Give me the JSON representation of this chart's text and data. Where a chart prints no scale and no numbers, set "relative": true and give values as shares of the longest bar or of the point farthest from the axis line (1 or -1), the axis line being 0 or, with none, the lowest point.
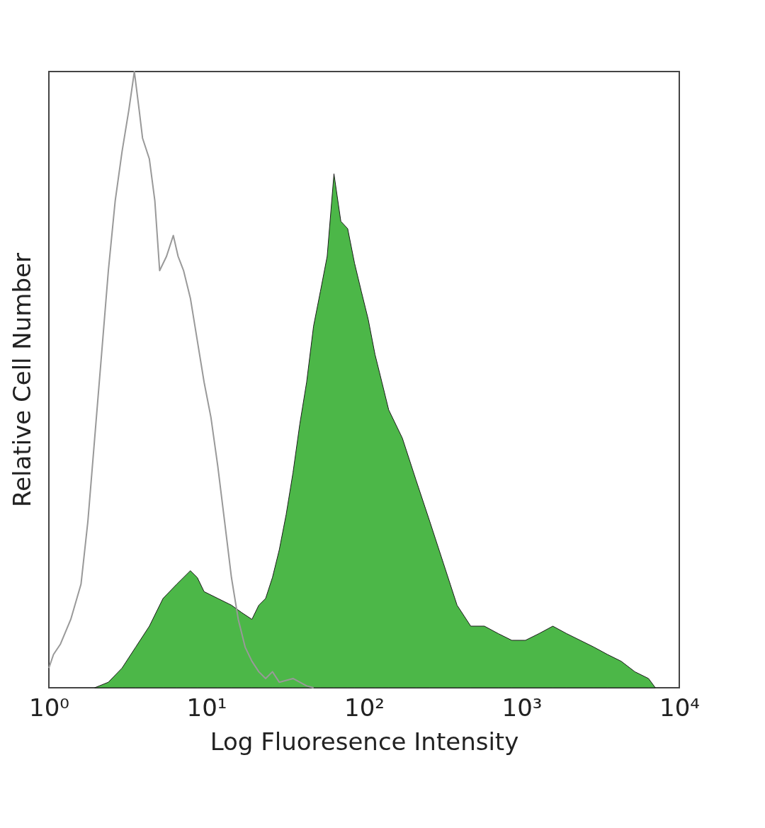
{
  "chart_data": {
    "type": "area",
    "xlabel": "Log Fluoresence Intensity",
    "ylabel": "Relative Cell Number",
    "relative": true,
    "log": "x",
    "tick_labels": "x",
    "xlim": [
      1,
      10000
    ],
    "xticks": [
      {
        "value": 1,
        "label": "10⁰"
      },
      {
        "value": 10,
        "label": "10¹"
      },
      {
        "value": 100,
        "label": "10²"
      },
      {
        "value": 1000,
        "label": "10³"
      },
      {
        "value": 10000,
        "label": "10⁴"
      }
    ],
    "series": [
      {
        "color": "#4cb748",
        "x": [
          1.953,
          2.385,
          2.912,
          3.556,
          4.342,
          5.302,
          6.475,
          7.907,
          8.738,
          9.656,
          11.79,
          14.4,
          16.73,
          19.43,
          21.48,
          23.73,
          26.22,
          28.97,
          32.02,
          35.39,
          39.1,
          43.2,
          47.8,
          52.8,
          58.3,
          64.4,
          71.2,
          78.7,
          87.0,
          96.1,
          106.2,
          117.3,
          129.7,
          143.3,
          175,
          213.6,
          261,
          318.7,
          389,
          475,
          580,
          709,
          865,
          1057,
          1290,
          1576,
          1924,
          2350,
          2870,
          3504,
          4278,
          5224,
          6380,
          7047
        ],
        "values": [
          0,
          0.009,
          0.032,
          0.066,
          0.1,
          0.145,
          0.168,
          0.19,
          0.179,
          0.156,
          0.145,
          0.134,
          0.122,
          0.111,
          0.134,
          0.145,
          0.179,
          0.224,
          0.281,
          0.349,
          0.428,
          0.496,
          0.587,
          0.643,
          0.7,
          0.834,
          0.757,
          0.745,
          0.689,
          0.643,
          0.598,
          0.541,
          0.496,
          0.451,
          0.405,
          0.337,
          0.27,
          0.202,
          0.134,
          0.1,
          0.1,
          0.088,
          0.077,
          0.077,
          0.088,
          0.1,
          0.088,
          0.077,
          0.066,
          0.054,
          0.043,
          0.026,
          0.015,
          0
        ]
      },
      {
        "type": "line",
        "color": "#999999",
        "x": [
          1,
          1.07,
          1.185,
          1.377,
          1.599,
          1.768,
          1.953,
          2.159,
          2.385,
          2.635,
          2.912,
          3.219,
          3.486,
          3.738,
          3.929,
          4.342,
          4.704,
          5.045,
          5.575,
          6.161,
          6.607,
          7.155,
          7.907,
          8.738,
          9.656,
          10.67,
          11.79,
          13.03,
          14.4,
          15.91,
          17.59,
          19.43,
          21.48,
          23.73,
          26.22,
          28.97,
          35.39,
          43.2,
          47.8
        ],
        "values": [
          0.032,
          0.054,
          0.071,
          0.111,
          0.168,
          0.27,
          0.405,
          0.541,
          0.677,
          0.79,
          0.87,
          0.938,
          1,
          0.938,
          0.892,
          0.858,
          0.79,
          0.677,
          0.7,
          0.734,
          0.7,
          0.677,
          0.632,
          0.564,
          0.496,
          0.439,
          0.36,
          0.27,
          0.179,
          0.111,
          0.066,
          0.043,
          0.026,
          0.015,
          0.026,
          0.009,
          0.015,
          0.003,
          0
        ]
      }
    ]
  }
}
